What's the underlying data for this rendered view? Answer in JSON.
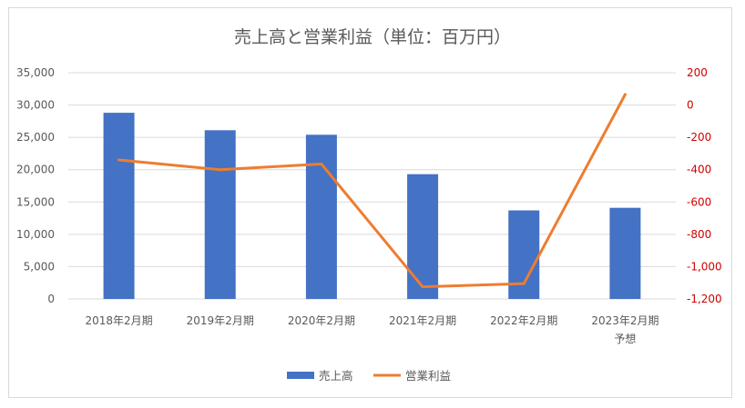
{
  "chart_data": {
    "type": "bar+line",
    "title": "売上高と営業利益（単位：百万円）",
    "categories": [
      [
        "2018年2月期"
      ],
      [
        "2019年2月期"
      ],
      [
        "2020年2月期"
      ],
      [
        "2021年2月期"
      ],
      [
        "2022年2月期"
      ],
      [
        "2023年2月期",
        "予想"
      ]
    ],
    "series": [
      {
        "name": "売上高",
        "type": "bar",
        "axis": "left",
        "color": "#4472C4",
        "values": [
          28800,
          26100,
          25400,
          19300,
          13700,
          14100
        ]
      },
      {
        "name": "営業利益",
        "type": "line",
        "axis": "right",
        "color": "#ED7D31",
        "values": [
          -340,
          -400,
          -365,
          -1125,
          -1105,
          65
        ]
      }
    ],
    "y_left": {
      "ylim": [
        0,
        35000
      ],
      "ticks": [
        "0",
        "5,000",
        "10,000",
        "15,000",
        "20,000",
        "25,000",
        "30,000",
        "35,000"
      ],
      "tick_values": [
        0,
        5000,
        10000,
        15000,
        20000,
        25000,
        30000,
        35000
      ],
      "tick_color": "#595959"
    },
    "y_right": {
      "ylim": [
        -1200,
        200
      ],
      "ticks": [
        "-1,200",
        "-1,000",
        "-800",
        "-600",
        "-400",
        "-200",
        "0",
        "200"
      ],
      "tick_values": [
        -1200,
        -1000,
        -800,
        -600,
        -400,
        -200,
        0,
        200
      ],
      "tick_color": "#D00000"
    },
    "grid": true,
    "legend_position": "bottom"
  }
}
